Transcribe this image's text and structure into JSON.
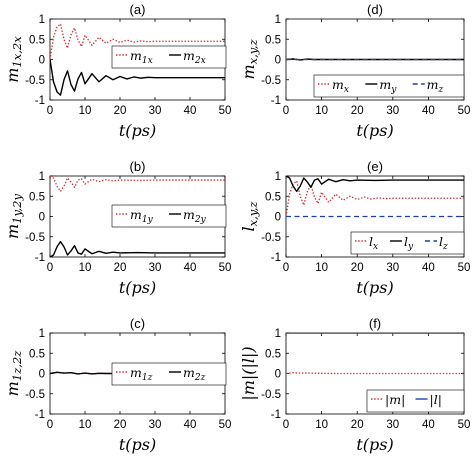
{
  "chart_data": [
    {
      "id": "a",
      "type": "line",
      "title": "(a)",
      "xlabel": "t(ps)",
      "ylabel": "m1x,2x",
      "xlim": [
        0,
        50
      ],
      "ylim": [
        -1,
        1
      ],
      "xticks": [
        0,
        10,
        20,
        30,
        40,
        50
      ],
      "yticks": [
        -1,
        -0.5,
        0,
        0.5,
        1
      ],
      "xtick_labels": [
        "0",
        "10",
        "20",
        "30",
        "40",
        "50"
      ],
      "ytick_labels": [
        "-1",
        "-0.5",
        "0",
        "0.5",
        "1"
      ],
      "legend": "right",
      "grid": false,
      "series": [
        {
          "name": "m1x",
          "color": "#d62728",
          "style": "dotted",
          "x": [
            0,
            1,
            2,
            3,
            4,
            5,
            6,
            7,
            8,
            9,
            10,
            12,
            14,
            16,
            18,
            20,
            22,
            24,
            26,
            28,
            30,
            35,
            40,
            45,
            50
          ],
          "y": [
            0,
            0.55,
            0.8,
            0.88,
            0.5,
            0.28,
            0.62,
            0.78,
            0.48,
            0.32,
            0.6,
            0.35,
            0.55,
            0.4,
            0.5,
            0.42,
            0.48,
            0.43,
            0.46,
            0.44,
            0.45,
            0.45,
            0.45,
            0.45,
            0.45
          ]
        },
        {
          "name": "m2x",
          "color": "#000000",
          "style": "solid",
          "x": [
            0,
            1,
            2,
            3,
            4,
            5,
            6,
            7,
            8,
            9,
            10,
            12,
            14,
            16,
            18,
            20,
            22,
            24,
            26,
            28,
            30,
            35,
            40,
            45,
            50
          ],
          "y": [
            0,
            -0.55,
            -0.8,
            -0.88,
            -0.5,
            -0.28,
            -0.62,
            -0.78,
            -0.48,
            -0.32,
            -0.6,
            -0.35,
            -0.55,
            -0.4,
            -0.5,
            -0.42,
            -0.48,
            -0.43,
            -0.46,
            -0.44,
            -0.45,
            -0.45,
            -0.45,
            -0.45,
            -0.45
          ]
        }
      ]
    },
    {
      "id": "b",
      "type": "line",
      "title": "(b)",
      "xlabel": "t(ps)",
      "ylabel": "m1y,2y",
      "xlim": [
        0,
        50
      ],
      "ylim": [
        -1,
        1
      ],
      "xticks": [
        0,
        10,
        20,
        30,
        40,
        50
      ],
      "yticks": [
        -1,
        -0.5,
        0,
        0.5,
        1
      ],
      "xtick_labels": [
        "0",
        "10",
        "20",
        "30",
        "40",
        "50"
      ],
      "ytick_labels": [
        "-1",
        "-0.5",
        "0",
        "0.5",
        "1"
      ],
      "legend": "right",
      "grid": false,
      "series": [
        {
          "name": "m1y",
          "color": "#d62728",
          "style": "dotted",
          "x": [
            0,
            1,
            2,
            3,
            4,
            5,
            6,
            7,
            8,
            9,
            10,
            12,
            14,
            16,
            18,
            20,
            25,
            30,
            40,
            50
          ],
          "y": [
            1,
            0.95,
            0.75,
            0.62,
            0.75,
            0.95,
            0.85,
            0.72,
            0.9,
            0.93,
            0.8,
            0.92,
            0.86,
            0.91,
            0.88,
            0.9,
            0.89,
            0.9,
            0.9,
            0.9
          ]
        },
        {
          "name": "m2y",
          "color": "#000000",
          "style": "solid",
          "x": [
            0,
            1,
            2,
            3,
            4,
            5,
            6,
            7,
            8,
            9,
            10,
            12,
            14,
            16,
            18,
            20,
            25,
            30,
            40,
            50
          ],
          "y": [
            -1,
            -0.95,
            -0.75,
            -0.62,
            -0.75,
            -0.95,
            -0.85,
            -0.72,
            -0.9,
            -0.93,
            -0.8,
            -0.92,
            -0.86,
            -0.91,
            -0.88,
            -0.9,
            -0.89,
            -0.9,
            -0.9,
            -0.9
          ]
        }
      ]
    },
    {
      "id": "c",
      "type": "line",
      "title": "(c)",
      "xlabel": "t(ps)",
      "ylabel": "m1z,2z",
      "xlim": [
        0,
        50
      ],
      "ylim": [
        -1,
        1
      ],
      "xticks": [
        0,
        10,
        20,
        30,
        40,
        50
      ],
      "yticks": [
        -1,
        -0.5,
        0,
        0.5,
        1
      ],
      "xtick_labels": [
        "0",
        "10",
        "20",
        "30",
        "40",
        "50"
      ],
      "ytick_labels": [
        "-1",
        "-0.5",
        "0",
        "0.5",
        "1"
      ],
      "legend": "right",
      "grid": false,
      "series": [
        {
          "name": "m1z",
          "color": "#d62728",
          "style": "dotted",
          "x": [
            0,
            2,
            4,
            6,
            8,
            10,
            12,
            14,
            16,
            20,
            30,
            40,
            50
          ],
          "y": [
            0,
            0.03,
            0.01,
            0.02,
            -0.01,
            0.01,
            -0.01,
            0.005,
            0,
            0,
            0,
            0,
            0
          ]
        },
        {
          "name": "m2z",
          "color": "#000000",
          "style": "solid",
          "x": [
            0,
            2,
            4,
            6,
            8,
            10,
            12,
            14,
            16,
            20,
            30,
            40,
            50
          ],
          "y": [
            0,
            0.03,
            0.01,
            0.02,
            -0.01,
            0.01,
            -0.01,
            0.005,
            0,
            0,
            0,
            0,
            0
          ]
        }
      ]
    },
    {
      "id": "d",
      "type": "line",
      "title": "(d)",
      "xlabel": "t(ps)",
      "ylabel": "mx,y,z",
      "xlim": [
        0,
        50
      ],
      "ylim": [
        -1,
        1
      ],
      "xticks": [
        0,
        10,
        20,
        30,
        40,
        50
      ],
      "yticks": [
        -1,
        -0.5,
        0,
        0.5,
        1
      ],
      "xtick_labels": [
        "0",
        "10",
        "20",
        "30",
        "40",
        "50"
      ],
      "ytick_labels": [
        "-1",
        "-0.5",
        "0",
        "0.5",
        "1"
      ],
      "legend": "bottom-right",
      "grid": false,
      "series": [
        {
          "name": "mx",
          "color": "#d62728",
          "style": "dotted",
          "x": [
            0,
            2,
            4,
            6,
            8,
            10,
            15,
            20,
            30,
            40,
            50
          ],
          "y": [
            0,
            0.02,
            -0.01,
            0.015,
            -0.005,
            0.005,
            0,
            0,
            0,
            0,
            0
          ]
        },
        {
          "name": "my",
          "color": "#000000",
          "style": "solid",
          "x": [
            0,
            2,
            4,
            6,
            8,
            10,
            15,
            20,
            30,
            40,
            50
          ],
          "y": [
            0,
            0.01,
            -0.01,
            0.01,
            0,
            0,
            0,
            0,
            0,
            0,
            0
          ]
        },
        {
          "name": "mz",
          "color": "#1f3fa8",
          "style": "dashed",
          "x": [
            0,
            10,
            20,
            30,
            40,
            50
          ],
          "y": [
            0,
            0,
            0,
            0,
            0,
            0
          ]
        }
      ]
    },
    {
      "id": "e",
      "type": "line",
      "title": "(e)",
      "xlabel": "t(ps)",
      "ylabel": "lx,y,z",
      "xlim": [
        0,
        50
      ],
      "ylim": [
        -1,
        1
      ],
      "xticks": [
        0,
        10,
        20,
        30,
        40,
        50
      ],
      "yticks": [
        -1,
        -0.5,
        0,
        0.5,
        1
      ],
      "xtick_labels": [
        "0",
        "10",
        "20",
        "30",
        "40",
        "50"
      ],
      "ytick_labels": [
        "-1",
        "-0.5",
        "0",
        "0.5",
        "1"
      ],
      "legend": "bottom-right",
      "grid": false,
      "series": [
        {
          "name": "lx",
          "color": "#d62728",
          "style": "dotted",
          "x": [
            0,
            1,
            2,
            3,
            4,
            5,
            6,
            7,
            8,
            9,
            10,
            12,
            14,
            16,
            18,
            20,
            22,
            24,
            26,
            28,
            30,
            35,
            40,
            45,
            50
          ],
          "y": [
            0,
            0.55,
            0.8,
            0.88,
            0.5,
            0.28,
            0.62,
            0.78,
            0.48,
            0.32,
            0.6,
            0.35,
            0.55,
            0.4,
            0.5,
            0.42,
            0.48,
            0.43,
            0.46,
            0.44,
            0.45,
            0.45,
            0.45,
            0.45,
            0.45
          ]
        },
        {
          "name": "ly",
          "color": "#000000",
          "style": "solid",
          "x": [
            0,
            1,
            2,
            3,
            4,
            5,
            6,
            7,
            8,
            9,
            10,
            12,
            14,
            16,
            18,
            20,
            25,
            30,
            40,
            50
          ],
          "y": [
            1,
            0.95,
            0.75,
            0.62,
            0.75,
            0.95,
            0.85,
            0.72,
            0.9,
            0.93,
            0.8,
            0.92,
            0.86,
            0.91,
            0.88,
            0.9,
            0.89,
            0.9,
            0.9,
            0.9
          ]
        },
        {
          "name": "lz",
          "color": "#1f3fa8",
          "style": "dashed",
          "x": [
            0,
            10,
            20,
            30,
            40,
            50
          ],
          "y": [
            0,
            0,
            0,
            0,
            0,
            0
          ]
        }
      ]
    },
    {
      "id": "f",
      "type": "line",
      "title": "(f)",
      "xlabel": "t(ps)",
      "ylabel": "|m|(|l|)",
      "xlim": [
        0,
        50
      ],
      "ylim": [
        -1,
        1
      ],
      "xticks": [
        0,
        10,
        20,
        30,
        40,
        50
      ],
      "yticks": [
        -1,
        -0.5,
        0,
        0.5,
        1
      ],
      "xtick_labels": [
        "0",
        "10",
        "20",
        "30",
        "40",
        "50"
      ],
      "ytick_labels": [
        "-1",
        "-0.5",
        "0",
        "0.5",
        "1"
      ],
      "legend": "bottom-right",
      "grid": false,
      "series": [
        {
          "name": "|m|",
          "color": "#d62728",
          "style": "dotted",
          "x": [
            0,
            2,
            4,
            6,
            8,
            10,
            15,
            20,
            30,
            40,
            50
          ],
          "y": [
            0,
            0.02,
            0.01,
            0.015,
            0.005,
            0.005,
            0,
            0,
            0,
            0,
            0
          ]
        },
        {
          "name": "|l|",
          "color": "#1f3fa8",
          "style": "solid",
          "x": [
            0,
            10,
            20,
            30,
            40,
            50
          ],
          "y": [
            1,
            1,
            1,
            1,
            1,
            1
          ]
        }
      ]
    }
  ]
}
